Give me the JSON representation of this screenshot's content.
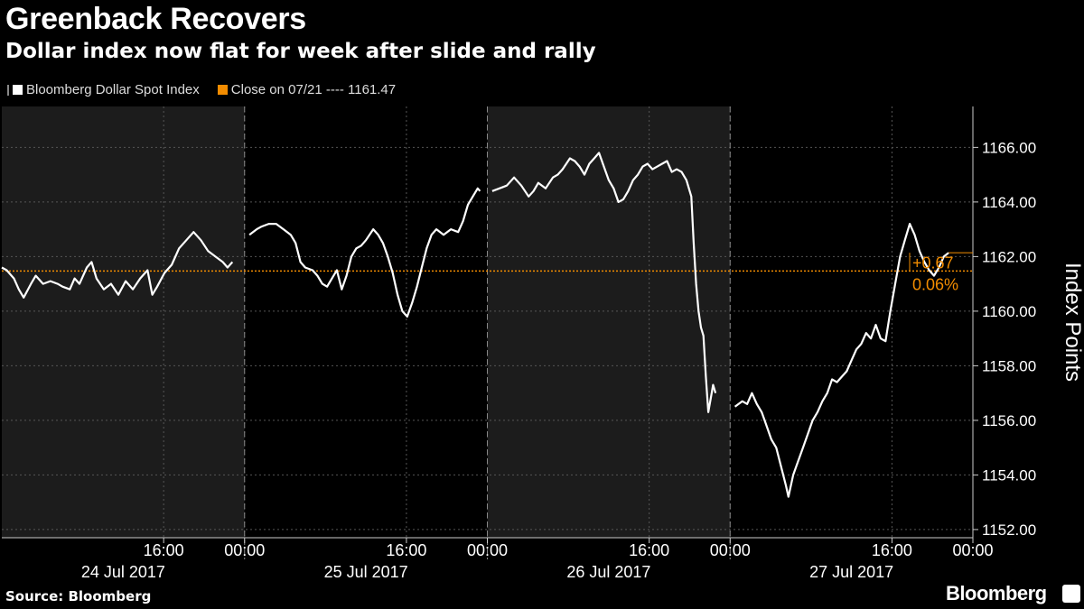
{
  "header": {
    "title": "Greenback Recovers",
    "subtitle": "Dollar index now flat for week after slide and rally"
  },
  "legend": {
    "series_label": "Bloomberg Dollar Spot Index",
    "close_label": "Close on 07/21 ---- 1161.47"
  },
  "footer": {
    "source": "Source: Bloomberg",
    "brand": "Bloomberg"
  },
  "colors": {
    "background": "#000000",
    "line": "#ffffff",
    "reference": "#f28c00",
    "shade": "#1c1c1c",
    "grid": "#555555"
  },
  "chart_data": {
    "type": "line",
    "ylabel": "Index Points",
    "ylim": [
      1151.7,
      1167.5
    ],
    "yticks": [
      "1152.00",
      "1154.00",
      "1156.00",
      "1158.00",
      "1160.00",
      "1162.00",
      "1164.00",
      "1166.00"
    ],
    "ytick_values": [
      1152,
      1154,
      1156,
      1158,
      1160,
      1162,
      1164,
      1166
    ],
    "x_start": "2017-07-24 00:00",
    "x_end": "2017-07-28 00:00",
    "x_time_ticks": [
      "16:00",
      "00:00",
      "16:00",
      "00:00",
      "16:00",
      "00:00",
      "16:00",
      "00:00"
    ],
    "x_day_labels": [
      "24 Jul 2017",
      "25 Jul 2017",
      "26 Jul 2017",
      "27 Jul 2017"
    ],
    "reference_line": {
      "label": "Close on 07/21",
      "value": 1161.47
    },
    "change_labels": {
      "absolute": "+0.67",
      "percent": "0.06%"
    },
    "last_value": 1162.14,
    "grid": true,
    "series": [
      {
        "name": "Bloomberg Dollar Spot Index",
        "segments": [
          {
            "day": "24 Jul 2017",
            "points": [
              [
                0.0,
                1161.6
              ],
              [
                0.02,
                1161.5
              ],
              [
                0.05,
                1161.2
              ],
              [
                0.07,
                1160.8
              ],
              [
                0.09,
                1160.5
              ],
              [
                0.12,
                1161.0
              ],
              [
                0.14,
                1161.3
              ],
              [
                0.17,
                1161.0
              ],
              [
                0.2,
                1161.1
              ],
              [
                0.23,
                1161.0
              ],
              [
                0.25,
                1160.9
              ],
              [
                0.28,
                1160.8
              ],
              [
                0.3,
                1161.2
              ],
              [
                0.32,
                1161.0
              ],
              [
                0.35,
                1161.6
              ],
              [
                0.37,
                1161.8
              ],
              [
                0.39,
                1161.2
              ],
              [
                0.42,
                1160.8
              ],
              [
                0.45,
                1161.0
              ],
              [
                0.48,
                1160.6
              ],
              [
                0.51,
                1161.1
              ],
              [
                0.54,
                1160.8
              ],
              [
                0.57,
                1161.2
              ],
              [
                0.6,
                1161.5
              ],
              [
                0.62,
                1160.6
              ],
              [
                0.64,
                1160.9
              ],
              [
                0.67,
                1161.4
              ],
              [
                0.7,
                1161.7
              ],
              [
                0.73,
                1162.3
              ],
              [
                0.76,
                1162.6
              ],
              [
                0.79,
                1162.9
              ],
              [
                0.82,
                1162.6
              ],
              [
                0.85,
                1162.2
              ],
              [
                0.88,
                1162.0
              ],
              [
                0.91,
                1161.8
              ],
              [
                0.93,
                1161.6
              ],
              [
                0.95,
                1161.8
              ]
            ]
          },
          {
            "day": "25 Jul 2017",
            "points": [
              [
                0.02,
                1162.8
              ],
              [
                0.05,
                1163.0
              ],
              [
                0.07,
                1163.1
              ],
              [
                0.1,
                1163.2
              ],
              [
                0.13,
                1163.2
              ],
              [
                0.16,
                1163.0
              ],
              [
                0.19,
                1162.8
              ],
              [
                0.21,
                1162.5
              ],
              [
                0.23,
                1161.8
              ],
              [
                0.25,
                1161.6
              ],
              [
                0.28,
                1161.5
              ],
              [
                0.3,
                1161.3
              ],
              [
                0.32,
                1161.0
              ],
              [
                0.34,
                1160.9
              ],
              [
                0.36,
                1161.2
              ],
              [
                0.38,
                1161.5
              ],
              [
                0.4,
                1160.8
              ],
              [
                0.42,
                1161.3
              ],
              [
                0.44,
                1162.0
              ],
              [
                0.46,
                1162.3
              ],
              [
                0.48,
                1162.4
              ],
              [
                0.5,
                1162.6
              ],
              [
                0.53,
                1163.0
              ],
              [
                0.55,
                1162.8
              ],
              [
                0.57,
                1162.5
              ],
              [
                0.59,
                1162.0
              ],
              [
                0.61,
                1161.4
              ],
              [
                0.63,
                1160.6
              ],
              [
                0.65,
                1160.0
              ],
              [
                0.67,
                1159.8
              ],
              [
                0.69,
                1160.3
              ],
              [
                0.71,
                1160.9
              ],
              [
                0.73,
                1161.6
              ],
              [
                0.75,
                1162.3
              ],
              [
                0.77,
                1162.8
              ],
              [
                0.79,
                1163.0
              ],
              [
                0.82,
                1162.8
              ],
              [
                0.85,
                1163.0
              ],
              [
                0.88,
                1162.9
              ],
              [
                0.9,
                1163.3
              ],
              [
                0.92,
                1163.9
              ],
              [
                0.94,
                1164.2
              ],
              [
                0.96,
                1164.5
              ],
              [
                0.97,
                1164.4
              ]
            ]
          },
          {
            "day": "26 Jul 2017",
            "points": [
              [
                0.02,
                1164.4
              ],
              [
                0.05,
                1164.5
              ],
              [
                0.08,
                1164.6
              ],
              [
                0.11,
                1164.9
              ],
              [
                0.14,
                1164.6
              ],
              [
                0.17,
                1164.2
              ],
              [
                0.19,
                1164.4
              ],
              [
                0.21,
                1164.7
              ],
              [
                0.24,
                1164.5
              ],
              [
                0.27,
                1164.9
              ],
              [
                0.29,
                1165.0
              ],
              [
                0.31,
                1165.2
              ],
              [
                0.34,
                1165.6
              ],
              [
                0.36,
                1165.5
              ],
              [
                0.38,
                1165.3
              ],
              [
                0.4,
                1165.0
              ],
              [
                0.42,
                1165.4
              ],
              [
                0.44,
                1165.6
              ],
              [
                0.46,
                1165.8
              ],
              [
                0.48,
                1165.3
              ],
              [
                0.5,
                1164.8
              ],
              [
                0.52,
                1164.5
              ],
              [
                0.54,
                1164.0
              ],
              [
                0.56,
                1164.1
              ],
              [
                0.58,
                1164.4
              ],
              [
                0.6,
                1164.8
              ],
              [
                0.62,
                1165.0
              ],
              [
                0.64,
                1165.3
              ],
              [
                0.66,
                1165.4
              ],
              [
                0.68,
                1165.2
              ],
              [
                0.7,
                1165.3
              ],
              [
                0.72,
                1165.4
              ],
              [
                0.74,
                1165.5
              ],
              [
                0.76,
                1165.1
              ],
              [
                0.78,
                1165.2
              ],
              [
                0.8,
                1165.1
              ],
              [
                0.82,
                1164.8
              ],
              [
                0.84,
                1164.2
              ],
              [
                0.85,
                1162.5
              ],
              [
                0.86,
                1161.0
              ],
              [
                0.87,
                1160.0
              ],
              [
                0.88,
                1159.4
              ],
              [
                0.89,
                1159.1
              ],
              [
                0.9,
                1157.6
              ],
              [
                0.91,
                1156.3
              ],
              [
                0.92,
                1156.8
              ],
              [
                0.93,
                1157.3
              ],
              [
                0.94,
                1157.0
              ]
            ]
          },
          {
            "day": "27 Jul 2017",
            "points": [
              [
                0.02,
                1156.5
              ],
              [
                0.05,
                1156.7
              ],
              [
                0.07,
                1156.6
              ],
              [
                0.09,
                1157.0
              ],
              [
                0.11,
                1156.6
              ],
              [
                0.13,
                1156.3
              ],
              [
                0.15,
                1155.8
              ],
              [
                0.17,
                1155.3
              ],
              [
                0.19,
                1155.0
              ],
              [
                0.21,
                1154.3
              ],
              [
                0.23,
                1153.6
              ],
              [
                0.24,
                1153.2
              ],
              [
                0.26,
                1154.0
              ],
              [
                0.28,
                1154.5
              ],
              [
                0.3,
                1155.0
              ],
              [
                0.32,
                1155.5
              ],
              [
                0.34,
                1156.0
              ],
              [
                0.36,
                1156.3
              ],
              [
                0.38,
                1156.7
              ],
              [
                0.4,
                1157.0
              ],
              [
                0.42,
                1157.5
              ],
              [
                0.44,
                1157.4
              ],
              [
                0.46,
                1157.6
              ],
              [
                0.48,
                1157.8
              ],
              [
                0.5,
                1158.2
              ],
              [
                0.52,
                1158.6
              ],
              [
                0.54,
                1158.8
              ],
              [
                0.56,
                1159.2
              ],
              [
                0.58,
                1159.0
              ],
              [
                0.6,
                1159.5
              ],
              [
                0.62,
                1159.0
              ],
              [
                0.64,
                1158.9
              ],
              [
                0.66,
                1160.0
              ],
              [
                0.68,
                1161.0
              ],
              [
                0.7,
                1162.0
              ],
              [
                0.72,
                1162.6
              ],
              [
                0.74,
                1163.2
              ],
              [
                0.76,
                1162.8
              ],
              [
                0.78,
                1162.2
              ],
              [
                0.8,
                1161.8
              ],
              [
                0.82,
                1161.5
              ],
              [
                0.84,
                1161.3
              ],
              [
                0.86,
                1161.6
              ],
              [
                0.88,
                1162.0
              ],
              [
                0.9,
                1162.14
              ]
            ]
          }
        ]
      }
    ]
  }
}
